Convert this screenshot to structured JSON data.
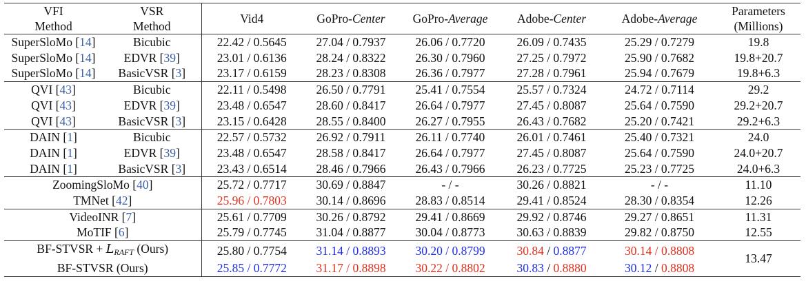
{
  "header": {
    "vfi": [
      "VFI",
      "Method"
    ],
    "vsr": [
      "VSR",
      "Method"
    ],
    "vid4": "Vid4",
    "gopro_center": [
      "GoPro-",
      "Center"
    ],
    "gopro_average": [
      "GoPro-",
      "Average"
    ],
    "adobe_center": [
      "Adobe-",
      "Center"
    ],
    "adobe_average": [
      "Adobe-",
      "Average"
    ],
    "params": [
      "Parameters",
      "(Millions)"
    ]
  },
  "groups": [
    [
      {
        "vfi": "SuperSloMo",
        "vfi_ref": "14",
        "vsr": "Bicubic",
        "vsr_ref": "",
        "vid4": "22.42 / 0.5645",
        "gc": "27.04 / 0.7937",
        "ga": "26.06 / 0.7720",
        "ac": "26.09 / 0.7435",
        "aa": "25.29 / 0.7279",
        "params": "19.8"
      },
      {
        "vfi": "SuperSloMo",
        "vfi_ref": "14",
        "vsr": "EDVR",
        "vsr_ref": "39",
        "vid4": "23.01 / 0.6136",
        "gc": "28.24 / 0.8322",
        "ga": "26.30 / 0.7960",
        "ac": "27.25 / 0.7972",
        "aa": "25.90 / 0.7682",
        "params": "19.8+20.7"
      },
      {
        "vfi": "SuperSloMo",
        "vfi_ref": "14",
        "vsr": "BasicVSR",
        "vsr_ref": "3",
        "vid4": "23.17 / 0.6159",
        "gc": "28.23 / 0.8308",
        "ga": "26.36 / 0.7977",
        "ac": "27.28 / 0.7961",
        "aa": "25.94 / 0.7679",
        "params": "19.8+6.3"
      }
    ],
    [
      {
        "vfi": "QVI",
        "vfi_ref": "43",
        "vsr": "Bicubic",
        "vsr_ref": "",
        "vid4": "22.11 / 0.5498",
        "gc": "26.50 / 0.7791",
        "ga": "25.41 / 0.7554",
        "ac": "25.57 / 0.7324",
        "aa": "24.72 / 0.7114",
        "params": "29.2"
      },
      {
        "vfi": "QVI",
        "vfi_ref": "43",
        "vsr": "EDVR",
        "vsr_ref": "39",
        "vid4": "23.48 / 0.6547",
        "gc": "28.60 / 0.8417",
        "ga": "26.64 / 0.7977",
        "ac": "27.45 / 0.8087",
        "aa": "25.64 / 0.7590",
        "params": "29.2+20.7"
      },
      {
        "vfi": "QVI",
        "vfi_ref": "43",
        "vsr": "BasicVSR",
        "vsr_ref": "3",
        "vid4": "23.15 / 0.6428",
        "gc": "28.55 / 0.8400",
        "ga": "26.27 / 0.7955",
        "ac": "26.43 / 0.7682",
        "aa": "25.20 / 0.7421",
        "params": "29.2+6.3"
      }
    ],
    [
      {
        "vfi": "DAIN",
        "vfi_ref": "1",
        "vsr": "Bicubic",
        "vsr_ref": "",
        "vid4": "22.57 / 0.5732",
        "gc": "26.92 / 0.7911",
        "ga": "26.11 / 0.7740",
        "ac": "26.01 / 0.7461",
        "aa": "25.40 / 0.7321",
        "params": "24.0"
      },
      {
        "vfi": "DAIN",
        "vfi_ref": "1",
        "vsr": "EDVR",
        "vsr_ref": "39",
        "vid4": "23.48 / 0.6547",
        "gc": "28.58 / 0.8417",
        "ga": "26.64 / 0.7977",
        "ac": "27.45 / 0.8087",
        "aa": "25.64 / 0.7590",
        "params": "24.0+20.7"
      },
      {
        "vfi": "DAIN",
        "vfi_ref": "1",
        "vsr": "BasicVSR",
        "vsr_ref": "3",
        "vid4": "23.43 / 0.6514",
        "gc": "28.46 / 0.7966",
        "ga": "26.43 / 0.7966",
        "ac": "26.23 / 0.7725",
        "aa": "25.23 / 0.7725",
        "params": "24.0+6.3"
      }
    ]
  ],
  "combined_groups": [
    [
      {
        "name": "ZoomingSloMo",
        "ref": "40",
        "vid4": "25.72 / 0.7717",
        "gc": "30.69 / 0.8847",
        "ga": "- / -",
        "ac": "30.26 / 0.8821",
        "aa": "- / -",
        "params": "11.10"
      },
      {
        "name": "TMNet",
        "ref": "42",
        "vid4": "25.96 / 0.7803",
        "vid4_color": "red",
        "gc": "30.14 / 0.8696",
        "ga": "28.83 / 0.8514",
        "ac": "29.41 / 0.8524",
        "aa": "28.30 / 0.8354",
        "params": "12.26"
      }
    ],
    [
      {
        "name": "VideoINR",
        "ref": "7",
        "vid4": "25.61 / 0.7709",
        "gc": "30.26 / 0.8792",
        "ga": "29.41 / 0.8669",
        "ac": "29.92 / 0.8746",
        "aa": "29.27 / 0.8651",
        "params": "11.31"
      },
      {
        "name": "MoTIF",
        "ref": "6",
        "vid4": "25.79 / 0.7745",
        "gc": "31.04 / 0.8877",
        "ga": "30.04 / 0.8773",
        "ac": "30.63 / 0.8839",
        "aa": "29.82 / 0.8750",
        "params": "12.55"
      }
    ]
  ],
  "ours": {
    "row1": {
      "name_prefix": "BF-STVSR + ",
      "loss_symbol": "L",
      "loss_sub": "RAFT",
      "name_suffix": " (Ours)",
      "vid4": [
        "25.80",
        "0.7754"
      ],
      "vid4_colors": [
        "",
        ""
      ],
      "gc": [
        "31.14",
        "0.8893"
      ],
      "gc_colors": [
        "blue",
        "blue"
      ],
      "ga": [
        "30.20",
        "0.8799"
      ],
      "ga_colors": [
        "blue",
        "blue"
      ],
      "ac": [
        "30.84",
        "0.8877"
      ],
      "ac_colors": [
        "red",
        "blue"
      ],
      "aa": [
        "30.14",
        "0.8808"
      ],
      "aa_colors": [
        "red",
        "red"
      ]
    },
    "row2": {
      "name": "BF-STVSR (Ours)",
      "vid4": [
        "25.85",
        "0.7772"
      ],
      "vid4_colors": [
        "blue",
        "blue"
      ],
      "gc": [
        "31.17",
        "0.8898"
      ],
      "gc_colors": [
        "red",
        "red"
      ],
      "ga": [
        "30.22",
        "0.8802"
      ],
      "ga_colors": [
        "red",
        "red"
      ],
      "ac": [
        "30.83",
        "0.8880"
      ],
      "ac_colors": [
        "blue",
        "red"
      ],
      "aa": [
        "30.12",
        "0.8808"
      ],
      "aa_colors": [
        "blue",
        "red"
      ]
    },
    "params": "13.47"
  },
  "colors": {
    "red": "#e0301e",
    "blue": "#1f2ee0",
    "ref": "#3a5fa8"
  }
}
